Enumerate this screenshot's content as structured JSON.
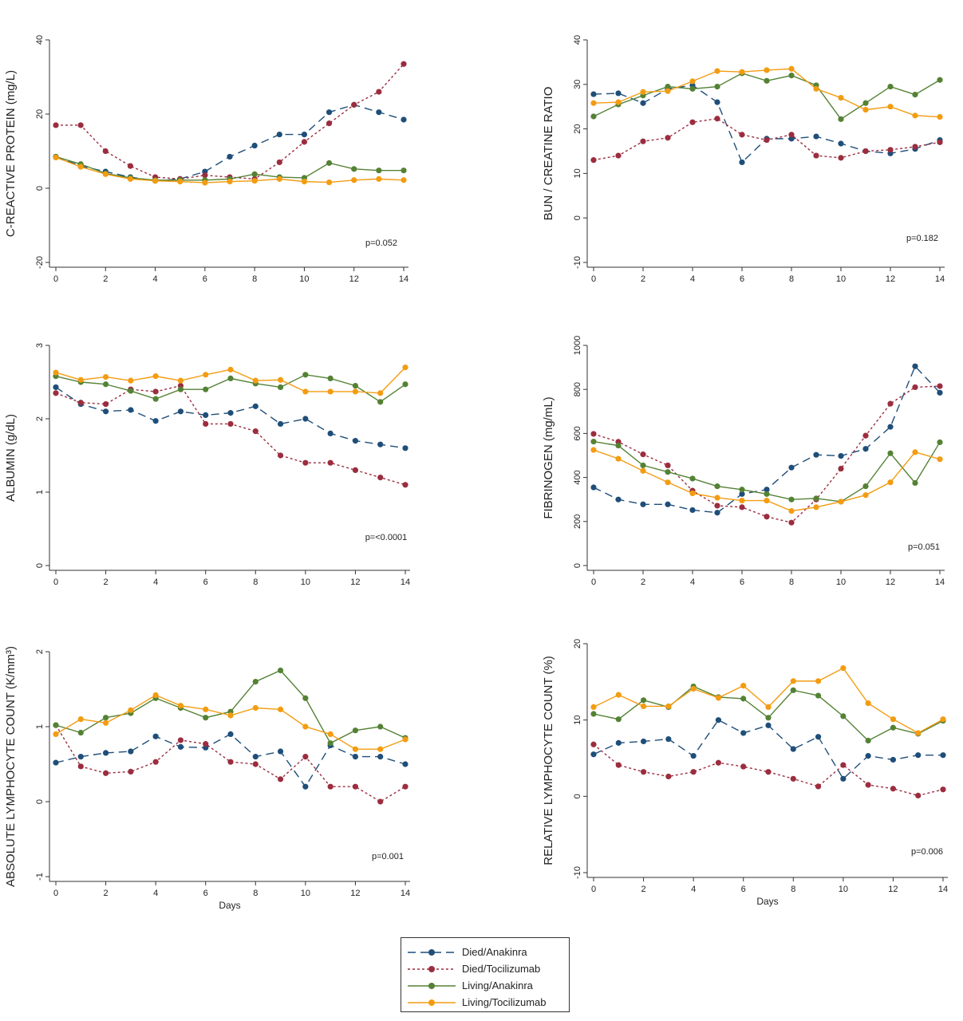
{
  "colors": {
    "died_anakinra": "#1f4e79",
    "died_tocilizumab": "#9b2d3f",
    "living_anakinra": "#548235",
    "living_tocilizumab": "#f39c12"
  },
  "legend": [
    {
      "label": "Died/Anakinra",
      "color": "#1f4e79",
      "dash": "10,6"
    },
    {
      "label": "Died/Tocilizumab",
      "color": "#9b2d3f",
      "dash": "3,3"
    },
    {
      "label": "Living/Anakinra",
      "color": "#548235",
      "dash": ""
    },
    {
      "label": "Living/Tocilizumab",
      "color": "#f39c12",
      "dash": ""
    }
  ],
  "chart_data": [
    {
      "type": "line",
      "ylabel": "C-REACTIVE PROTEIN (mg/L)",
      "xlabel": "",
      "x": [
        0,
        1,
        2,
        3,
        4,
        5,
        6,
        7,
        8,
        9,
        10,
        11,
        12,
        13,
        14
      ],
      "xticks": [
        0,
        2,
        4,
        6,
        8,
        10,
        12,
        14
      ],
      "ylim": [
        -20,
        40
      ],
      "yticks": [
        -20,
        0,
        20,
        40
      ],
      "annotation": "p=0.052",
      "series": [
        {
          "name": "Died/Anakinra",
          "values": [
            8.5,
            6,
            4.5,
            3,
            2,
            2.5,
            4.5,
            8.5,
            11.5,
            14.5,
            14.5,
            20.5,
            22.5,
            20.5,
            18.5
          ]
        },
        {
          "name": "Died/Tocilizumab",
          "values": [
            17,
            17,
            10,
            6,
            3,
            2.5,
            3.5,
            3,
            2.5,
            7,
            12.5,
            17.5,
            22.5,
            26,
            33.5
          ]
        },
        {
          "name": "Living/Anakinra",
          "values": [
            8.5,
            6.5,
            4,
            2.8,
            2.2,
            2.2,
            2.2,
            2.5,
            3.8,
            3,
            2.8,
            6.8,
            5.2,
            4.8,
            4.8
          ]
        },
        {
          "name": "Living/Tocilizumab",
          "values": [
            8.3,
            5.8,
            3.8,
            2.5,
            2,
            1.8,
            1.5,
            1.8,
            2,
            2.5,
            1.8,
            1.6,
            2.2,
            2.5,
            2.2
          ]
        }
      ]
    },
    {
      "type": "line",
      "ylabel": "BUN / CREATINE RATIO",
      "xlabel": "",
      "x": [
        0,
        1,
        2,
        3,
        4,
        5,
        6,
        7,
        8,
        9,
        10,
        11,
        12,
        13,
        14
      ],
      "xticks": [
        0,
        2,
        4,
        6,
        8,
        10,
        12,
        14
      ],
      "ylim": [
        -10,
        40
      ],
      "yticks": [
        -10,
        0,
        10,
        20,
        30,
        40
      ],
      "annotation": "p=0.182",
      "series": [
        {
          "name": "Died/Anakinra",
          "values": [
            27.8,
            28,
            25.8,
            29,
            29.8,
            26,
            12.5,
            17.8,
            17.8,
            18.3,
            16.7,
            15,
            14.5,
            15.5,
            17.5
          ]
        },
        {
          "name": "Died/Tocilizumab",
          "values": [
            13,
            14,
            17.2,
            18,
            21.5,
            22.3,
            18.7,
            17.5,
            18.7,
            14,
            13.5,
            15,
            15.3,
            16,
            17
          ]
        },
        {
          "name": "Living/Anakinra",
          "values": [
            22.8,
            25.5,
            27.5,
            29.5,
            29,
            29.5,
            32.5,
            30.8,
            32,
            29.8,
            22.2,
            25.8,
            29.5,
            27.7,
            31
          ]
        },
        {
          "name": "Living/Tocilizumab",
          "values": [
            25.8,
            26,
            28.3,
            28.5,
            30.7,
            33,
            32.8,
            33.2,
            33.5,
            29,
            27,
            24.3,
            25,
            23,
            22.7
          ]
        }
      ]
    },
    {
      "type": "line",
      "ylabel": "ALBUMIN (g/dL)",
      "xlabel": "",
      "x": [
        0,
        1,
        2,
        3,
        4,
        5,
        6,
        7,
        8,
        9,
        10,
        11,
        12,
        13,
        14
      ],
      "xticks": [
        0,
        2,
        4,
        6,
        8,
        10,
        12,
        14
      ],
      "ylim": [
        0,
        3
      ],
      "yticks": [
        0,
        1,
        2,
        3
      ],
      "annotation": "p=<0.0001",
      "series": [
        {
          "name": "Died/Anakinra",
          "values": [
            2.43,
            2.2,
            2.1,
            2.12,
            1.97,
            2.1,
            2.05,
            2.08,
            2.17,
            1.93,
            2,
            1.8,
            1.7,
            1.65,
            1.6
          ]
        },
        {
          "name": "Died/Tocilizumab",
          "values": [
            2.35,
            2.22,
            2.2,
            2.4,
            2.37,
            2.45,
            1.93,
            1.93,
            1.83,
            1.5,
            1.4,
            1.4,
            1.3,
            1.2,
            1.1
          ]
        },
        {
          "name": "Living/Anakinra",
          "values": [
            2.58,
            2.5,
            2.47,
            2.38,
            2.27,
            2.4,
            2.4,
            2.55,
            2.48,
            2.43,
            2.6,
            2.55,
            2.45,
            2.23,
            2.47
          ]
        },
        {
          "name": "Living/Tocilizumab",
          "values": [
            2.63,
            2.53,
            2.57,
            2.52,
            2.58,
            2.52,
            2.6,
            2.67,
            2.52,
            2.53,
            2.37,
            2.37,
            2.37,
            2.35,
            2.7
          ]
        }
      ]
    },
    {
      "type": "line",
      "ylabel": "FIBRINOGEN (mg/mL)",
      "xlabel": "",
      "x": [
        0,
        1,
        2,
        3,
        4,
        5,
        6,
        7,
        8,
        9,
        10,
        11,
        12,
        13,
        14
      ],
      "xticks": [
        0,
        2,
        4,
        6,
        8,
        10,
        12,
        14
      ],
      "ylim": [
        0,
        1000
      ],
      "yticks": [
        0,
        200,
        400,
        600,
        800,
        1000
      ],
      "annotation": "p=0.051",
      "series": [
        {
          "name": "Died/Anakinra",
          "values": [
            355,
            300,
            278,
            278,
            252,
            240,
            325,
            345,
            445,
            503,
            498,
            530,
            630,
            905,
            785
          ]
        },
        {
          "name": "Died/Tocilizumab",
          "values": [
            598,
            562,
            505,
            455,
            340,
            272,
            265,
            222,
            195,
            300,
            440,
            590,
            735,
            810,
            815
          ]
        },
        {
          "name": "Living/Anakinra",
          "values": [
            563,
            545,
            455,
            425,
            395,
            360,
            345,
            325,
            300,
            305,
            290,
            360,
            510,
            375,
            560
          ]
        },
        {
          "name": "Living/Tocilizumab",
          "values": [
            525,
            485,
            430,
            378,
            328,
            308,
            295,
            295,
            248,
            265,
            290,
            320,
            378,
            515,
            483
          ]
        }
      ]
    },
    {
      "type": "line",
      "ylabel": "ABSOLUTE LYMPHOCYTE COUNT (K/mm³)",
      "xlabel": "Days",
      "x": [
        0,
        1,
        2,
        3,
        4,
        5,
        6,
        7,
        8,
        9,
        10,
        11,
        12,
        13,
        14
      ],
      "xticks": [
        0,
        2,
        4,
        6,
        8,
        10,
        12,
        14
      ],
      "ylim": [
        -1,
        2
      ],
      "yticks": [
        -1,
        0,
        1,
        2
      ],
      "annotation": "p=0.001",
      "series": [
        {
          "name": "Died/Anakinra",
          "values": [
            0.52,
            0.6,
            0.65,
            0.67,
            0.87,
            0.73,
            0.72,
            0.9,
            0.6,
            0.67,
            0.2,
            0.75,
            0.6,
            0.6,
            0.5
          ]
        },
        {
          "name": "Died/Tocilizumab",
          "values": [
            1.02,
            0.47,
            0.38,
            0.4,
            0.53,
            0.82,
            0.77,
            0.53,
            0.5,
            0.3,
            0.6,
            0.2,
            0.2,
            0,
            0.2
          ]
        },
        {
          "name": "Living/Anakinra",
          "values": [
            1.02,
            0.92,
            1.12,
            1.18,
            1.38,
            1.25,
            1.12,
            1.2,
            1.6,
            1.75,
            1.38,
            0.78,
            0.95,
            1,
            0.85
          ]
        },
        {
          "name": "Living/Tocilizumab",
          "values": [
            0.9,
            1.1,
            1.05,
            1.22,
            1.42,
            1.28,
            1.23,
            1.15,
            1.25,
            1.23,
            1,
            0.9,
            0.7,
            0.7,
            0.83
          ]
        }
      ]
    },
    {
      "type": "line",
      "ylabel": "RELATIVE LYMPHOCYTE COUNT (%)",
      "xlabel": "Days",
      "x": [
        0,
        1,
        2,
        3,
        4,
        5,
        6,
        7,
        8,
        9,
        10,
        11,
        12,
        13,
        14
      ],
      "xticks": [
        0,
        2,
        4,
        6,
        8,
        10,
        12,
        14
      ],
      "ylim": [
        -10,
        20
      ],
      "yticks": [
        -10,
        0,
        10,
        20
      ],
      "annotation": "p=0.006",
      "series": [
        {
          "name": "Died/Anakinra",
          "values": [
            5.5,
            7,
            7.2,
            7.5,
            5.3,
            10,
            8.3,
            9.3,
            6.2,
            7.8,
            2.3,
            5.3,
            4.8,
            5.4,
            5.4
          ]
        },
        {
          "name": "Died/Tocilizumab",
          "values": [
            6.8,
            4.1,
            3.2,
            2.6,
            3.2,
            4.4,
            3.9,
            3.2,
            2.3,
            1.3,
            4.1,
            1.5,
            1,
            0.1,
            0.9
          ]
        },
        {
          "name": "Living/Anakinra",
          "values": [
            10.8,
            10.1,
            12.6,
            11.7,
            14.4,
            13,
            12.8,
            10.3,
            13.9,
            13.2,
            10.5,
            7.3,
            9,
            8.2,
            9.9
          ]
        },
        {
          "name": "Living/Tocilizumab",
          "values": [
            11.7,
            13.3,
            11.8,
            11.8,
            14.1,
            12.9,
            14.5,
            11.7,
            15.1,
            15.1,
            16.8,
            12.2,
            10.1,
            8.3,
            10.1
          ]
        }
      ]
    }
  ]
}
